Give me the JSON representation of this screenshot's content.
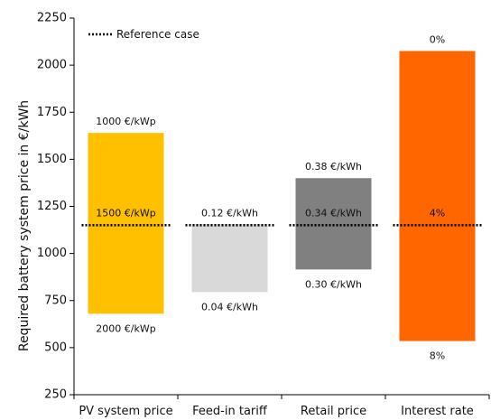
{
  "chart_data": {
    "type": "bar",
    "subtype": "floating-range",
    "ylabel": "Required battery system price in €/kWh",
    "ylim": [
      250,
      2250
    ],
    "yticks": [
      250,
      500,
      750,
      1000,
      1250,
      1500,
      1750,
      2000,
      2250
    ],
    "grid": false,
    "legend": {
      "placement": "top-left",
      "label": "Reference case",
      "style": "dotted-line"
    },
    "reference_value": 1150,
    "categories": [
      "PV system price",
      "Feed-in tariff",
      "Retail price",
      "Interest rate"
    ],
    "bars": [
      {
        "category": "PV system price",
        "low": 680,
        "high": 1640,
        "color": "#FFC000",
        "top_label": "1000 €/kWp",
        "mid_label": "1500 €/kWp",
        "bottom_label": "2000 €/kWp"
      },
      {
        "category": "Feed-in tariff",
        "low": 795,
        "high": 1155,
        "color": "#D9D9D9",
        "top_label": "0.12 €/kWh",
        "mid_label": "",
        "bottom_label": "0.04 €/kWh"
      },
      {
        "category": "Retail price",
        "low": 915,
        "high": 1400,
        "color": "#808080",
        "top_label": "0.38 €/kWh",
        "mid_label": "0.34 €/kWh",
        "bottom_label": "0.30 €/kWh"
      },
      {
        "category": "Interest rate",
        "low": 535,
        "high": 2075,
        "color": "#FF6600",
        "top_label": "0%",
        "mid_label": "4%",
        "bottom_label": "8%"
      }
    ]
  }
}
